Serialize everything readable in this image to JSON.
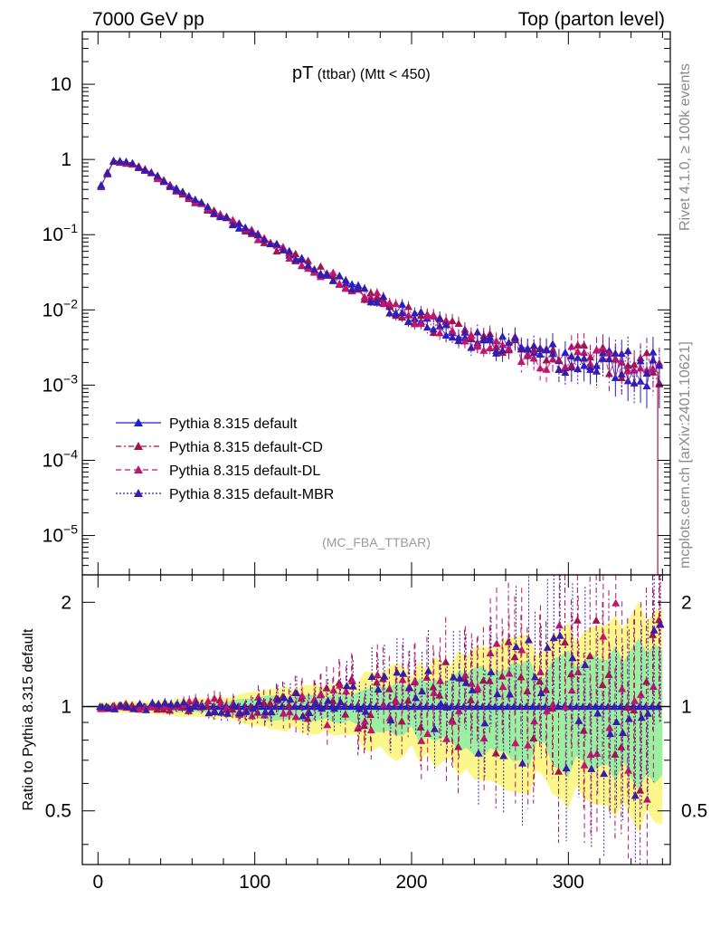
{
  "header": {
    "left": "7000 GeV pp",
    "right": "Top (parton level)"
  },
  "side_labels": {
    "top": "Rivet 4.1.0, ≥ 100k events",
    "bottom": "mcplots.cern.ch [arXiv:2401.10621]"
  },
  "chart_data": [
    {
      "type": "line",
      "title_main": "pT",
      "title_sub": " (ttbar) (Mtt < 450)",
      "analysis_label": "(MC_FBA_TTBAR)",
      "yscale": "log",
      "ylim": [
        3e-06,
        50
      ],
      "xlim": [
        -10,
        365
      ],
      "y_tick_labels": [
        {
          "v": 10,
          "base": "10",
          "exp": ""
        },
        {
          "v": 1,
          "base": "1",
          "exp": ""
        },
        {
          "v": 0.1,
          "base": "10",
          "exp": "−1"
        },
        {
          "v": 0.01,
          "base": "10",
          "exp": "−2"
        },
        {
          "v": 0.001,
          "base": "10",
          "exp": "−3"
        },
        {
          "v": 0.0001,
          "base": "10",
          "exp": "−4"
        },
        {
          "v": 1e-05,
          "base": "10",
          "exp": "−5"
        }
      ],
      "legend": [
        {
          "label": "Pythia 8.315 default",
          "color": "#1f1fcf",
          "dash": ""
        },
        {
          "label": "Pythia 8.315 default-CD",
          "color": "#a0154e",
          "dash": "6,3,2,3"
        },
        {
          "label": "Pythia 8.315 default-DL",
          "color": "#c0166e",
          "dash": "6,4"
        },
        {
          "label": "Pythia 8.315 default-MBR",
          "color": "#3a1aa8",
          "dash": "2,2"
        }
      ],
      "series": [
        {
          "name": "Pythia 8.315 default",
          "x": [
            2,
            10,
            20,
            30,
            40,
            50,
            60,
            80,
            100,
            120,
            140,
            160,
            180,
            200,
            220,
            240,
            260,
            280,
            300,
            320,
            340,
            355
          ],
          "values": [
            0.45,
            0.95,
            0.9,
            0.72,
            0.55,
            0.4,
            0.3,
            0.17,
            0.1,
            0.058,
            0.034,
            0.021,
            0.013,
            0.0085,
            0.0058,
            0.0042,
            0.0032,
            0.0026,
            0.0022,
            0.002,
            0.0018,
            0.0015
          ]
        }
      ]
    },
    {
      "type": "line",
      "ylabel": "Ratio to Pythia 8.315 default",
      "yscale": "log",
      "ylim": [
        0.35,
        2.4
      ],
      "xlim": [
        -10,
        365
      ],
      "y_ticks": [
        0.5,
        1,
        2
      ],
      "y_tick_labels": [
        "0.5",
        "1",
        "2"
      ],
      "x_ticks": [
        0,
        100,
        200,
        300
      ],
      "x_tick_labels": [
        "0",
        "100",
        "200",
        "300"
      ],
      "reference": 1
    }
  ]
}
